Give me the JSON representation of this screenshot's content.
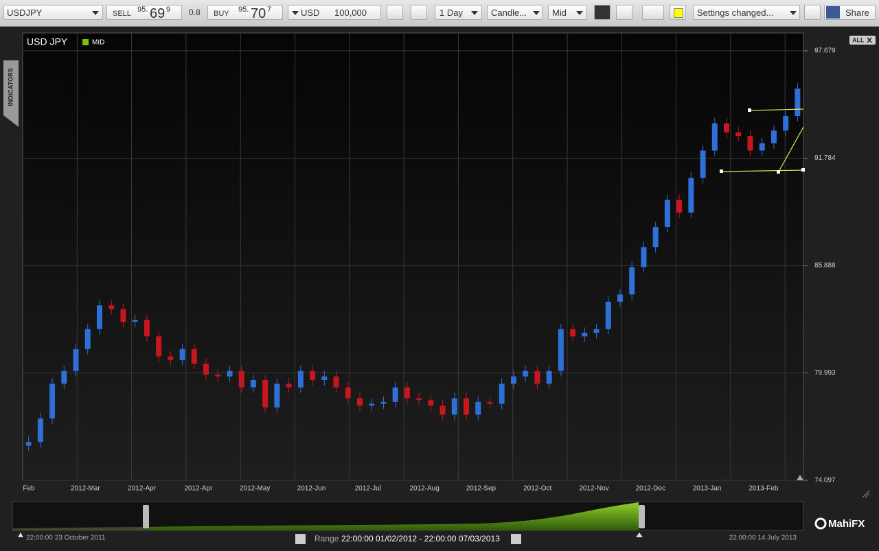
{
  "toolbar": {
    "symbol": "USDJPY",
    "sell_label": "SELL",
    "sell_big": "95.",
    "sell_main": "69",
    "sell_pip": "9",
    "spread": "0.8",
    "buy_label": "BUY",
    "buy_big": "95.",
    "buy_main": "70",
    "buy_pip": "7",
    "currency": "USD",
    "amount": "100,000",
    "period": "1 Day",
    "chart_style": "Candle...",
    "price_type": "Mid",
    "status": "Settings changed...",
    "share": "Share"
  },
  "side_tab": "INDICATORS",
  "zoom_button": "ALL",
  "chart_data": {
    "type": "candlestick",
    "title": "USD JPY",
    "legend_label": "MID",
    "legend_color": "#7cc400",
    "up_color": "#2f6fd8",
    "down_color": "#c8161e",
    "grid": true,
    "ylim": [
      74.097,
      97.679
    ],
    "yticks": [
      74.097,
      79.993,
      85.888,
      91.784,
      97.679
    ],
    "x_labels": [
      "Feb",
      "2012-Mar",
      "2012-Apr",
      "2012-Apr",
      "2012-May",
      "2012-Jun",
      "2012-Jul",
      "2012-Aug",
      "2012-Sep",
      "2012-Oct",
      "2012-Nov",
      "2012-Dec",
      "2013-Jan",
      "2013-Feb"
    ],
    "open": [
      76.0,
      76.2,
      77.5,
      79.4,
      80.1,
      81.3,
      82.4,
      83.7,
      83.5,
      82.8,
      82.9,
      82.0,
      80.9,
      80.7,
      81.3,
      80.5,
      79.9,
      79.8,
      80.1,
      79.2,
      79.6,
      78.1,
      79.4,
      79.2,
      80.1,
      79.6,
      79.8,
      79.2,
      78.6,
      78.2,
      78.3,
      78.4,
      79.2,
      78.6,
      78.5,
      78.2,
      77.7,
      78.6,
      77.7,
      78.4,
      78.3,
      79.4,
      79.8,
      80.1,
      79.4,
      80.1,
      82.4,
      82.0,
      82.2,
      82.4,
      83.9,
      84.3,
      85.8,
      86.9,
      88.0,
      89.5,
      88.8,
      90.7,
      92.2,
      93.7,
      93.2,
      93.0,
      92.2,
      92.6,
      93.3,
      94.1
    ],
    "high": [
      76.5,
      77.8,
      79.7,
      80.4,
      81.6,
      82.7,
      84.0,
      84.0,
      83.8,
      83.2,
      83.2,
      82.3,
      81.2,
      81.6,
      81.6,
      80.8,
      80.2,
      80.4,
      80.4,
      79.9,
      79.9,
      79.7,
      79.7,
      80.4,
      80.4,
      80.1,
      80.1,
      79.5,
      78.9,
      78.6,
      78.7,
      79.5,
      79.5,
      78.9,
      78.8,
      78.5,
      78.9,
      78.9,
      78.7,
      78.7,
      79.7,
      80.1,
      80.4,
      80.4,
      80.4,
      82.7,
      82.7,
      82.5,
      82.7,
      84.2,
      84.6,
      86.1,
      87.2,
      88.3,
      89.8,
      89.8,
      91.0,
      92.5,
      94.0,
      94.0,
      93.5,
      93.3,
      92.9,
      93.6,
      94.4,
      95.9
    ],
    "low": [
      75.7,
      75.9,
      77.2,
      79.1,
      79.8,
      81.0,
      82.1,
      83.2,
      82.5,
      82.5,
      81.7,
      80.6,
      80.4,
      80.4,
      80.2,
      79.6,
      79.5,
      79.5,
      78.9,
      78.9,
      77.8,
      77.8,
      78.9,
      78.9,
      79.3,
      79.3,
      78.9,
      78.3,
      77.9,
      77.9,
      78.0,
      78.1,
      78.3,
      78.2,
      77.9,
      77.4,
      77.4,
      77.4,
      77.4,
      78.0,
      78.0,
      79.1,
      79.5,
      79.1,
      79.1,
      79.8,
      81.7,
      81.7,
      81.9,
      82.1,
      83.6,
      84.0,
      85.5,
      86.6,
      87.7,
      88.5,
      88.5,
      90.4,
      91.9,
      92.9,
      92.7,
      91.9,
      91.9,
      92.3,
      93.0,
      93.8
    ],
    "close": [
      76.2,
      77.5,
      79.4,
      80.1,
      81.3,
      82.4,
      83.7,
      83.5,
      82.8,
      82.9,
      82.0,
      80.9,
      80.7,
      81.3,
      80.5,
      79.9,
      79.8,
      80.1,
      79.2,
      79.6,
      78.1,
      79.4,
      79.2,
      80.1,
      79.6,
      79.8,
      79.2,
      78.6,
      78.2,
      78.3,
      78.4,
      79.2,
      78.6,
      78.5,
      78.2,
      77.7,
      78.6,
      77.7,
      78.4,
      78.3,
      79.4,
      79.8,
      80.1,
      79.4,
      80.1,
      82.4,
      82.0,
      82.2,
      82.4,
      83.9,
      84.3,
      85.8,
      86.9,
      88.0,
      89.5,
      88.8,
      90.7,
      92.2,
      93.7,
      93.2,
      93.0,
      92.2,
      92.6,
      93.3,
      94.1,
      95.6
    ]
  },
  "navigator": {
    "start": "22:00:00 23 October 2011",
    "range_label": "Range",
    "range": "22:00:00 01/02/2012 - 22:00:00 07/03/2013",
    "end": "22:00:00 14 July 2013"
  },
  "brand": "MahiFX"
}
